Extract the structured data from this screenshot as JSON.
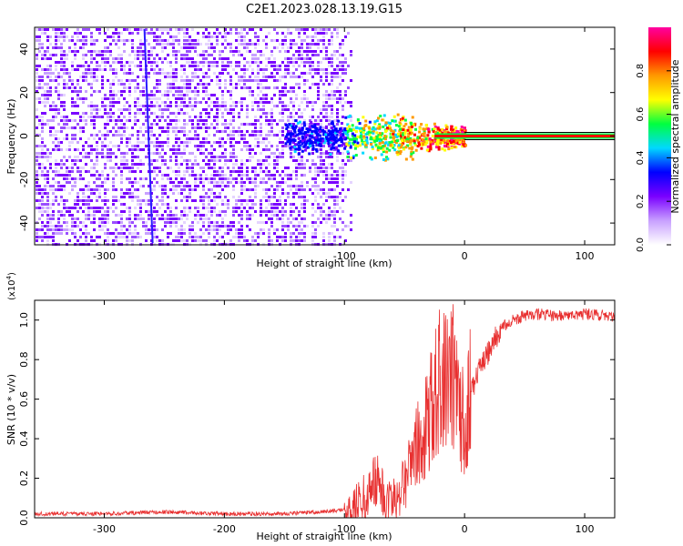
{
  "title": "C2E1.2023.028.13.19.G15",
  "chart_data": [
    {
      "type": "heatmap",
      "xlabel": "Height of straight line (km)",
      "ylabel": "Frequency (Hz)",
      "xlim": [
        -358,
        125
      ],
      "ylim": [
        -50,
        50
      ],
      "xticks": [
        -300,
        -200,
        -100,
        0,
        100
      ],
      "yticks": [
        -40,
        -20,
        0,
        20,
        40
      ],
      "colorbar": {
        "label": "Normalized spectral amplitude",
        "range": [
          0,
          1
        ],
        "ticks": [
          "0.0",
          "0.2",
          "0.4",
          "0.6",
          "0.8"
        ],
        "colors": [
          "#ffffff",
          "#c8a0ff",
          "#7a00ff",
          "#0000ff",
          "#00d8ff",
          "#00ff40",
          "#ffff00",
          "#ff9900",
          "#ff0000",
          "#ff00a0"
        ]
      },
      "features": {
        "noise_floor_x_range": [
          -358,
          -110
        ],
        "signal_onset_x": -100,
        "carrier_frequency": 0,
        "strong_signal_x_range": [
          0,
          125
        ]
      }
    },
    {
      "type": "line",
      "xlabel": "Height of straight line (km)",
      "ylabel": "SNR (10 * v/v)",
      "multiplier": "(x10",
      "multiplier_exp": "4",
      "xlim": [
        -358,
        125
      ],
      "ylim": [
        0,
        1.1
      ],
      "xticks": [
        -300,
        -200,
        -100,
        0,
        100
      ],
      "yticks": [
        "0.0",
        "0.2",
        "0.4",
        "0.6",
        "0.8",
        "1.0"
      ],
      "series": [
        {
          "color": "#e83030",
          "x": [
            -358,
            -300,
            -250,
            -200,
            -150,
            -120,
            -100,
            -90,
            -80,
            -75,
            -70,
            -65,
            -60,
            -55,
            -50,
            -45,
            -40,
            -35,
            -30,
            -25,
            -20,
            -15,
            -10,
            -5,
            0,
            5,
            10,
            15,
            20,
            25,
            30,
            40,
            50,
            60,
            80,
            100,
            125
          ],
          "y": [
            0.02,
            0.02,
            0.03,
            0.02,
            0.02,
            0.03,
            0.04,
            0.07,
            0.12,
            0.2,
            0.14,
            0.1,
            0.09,
            0.12,
            0.2,
            0.28,
            0.35,
            0.4,
            0.52,
            0.62,
            0.7,
            0.75,
            0.72,
            0.6,
            0.5,
            0.62,
            0.72,
            0.78,
            0.84,
            0.9,
            0.96,
            1.0,
            1.02,
            1.03,
            1.02,
            1.03,
            1.02
          ]
        }
      ]
    }
  ]
}
